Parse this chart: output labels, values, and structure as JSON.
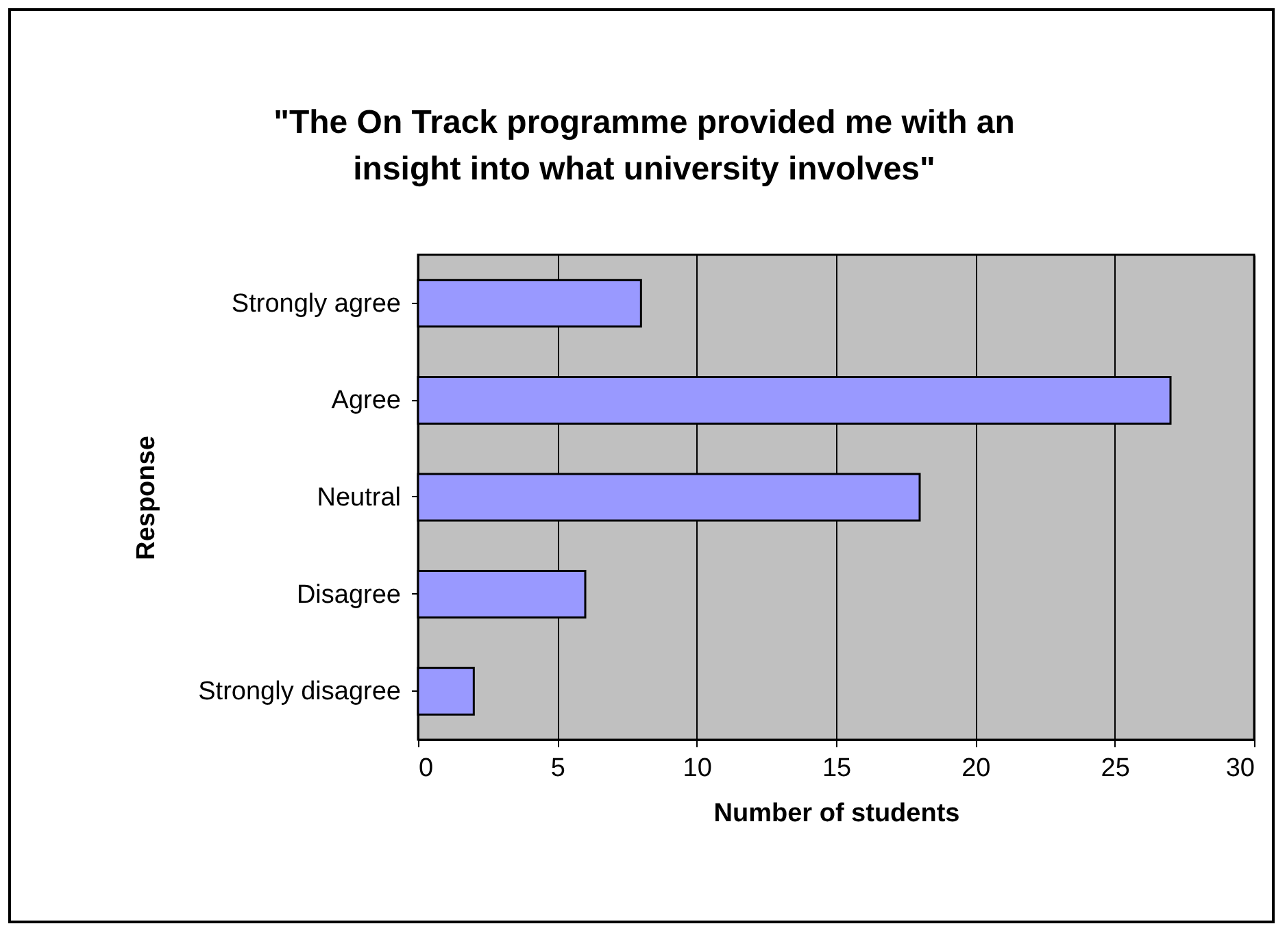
{
  "chart_data": {
    "type": "bar",
    "orientation": "horizontal",
    "title": "\"The On Track programme provided me with an insight into what university involves\"",
    "xlabel": "Number of students",
    "ylabel": "Response",
    "categories": [
      "Strongly agree",
      "Agree",
      "Neutral",
      "Disagree",
      "Strongly disagree"
    ],
    "values": [
      8,
      27,
      18,
      6,
      2
    ],
    "color": "#9999ff",
    "xlim": [
      0,
      30
    ],
    "xticks": [
      0,
      5,
      10,
      15,
      20,
      25,
      30
    ],
    "grid": "x"
  }
}
